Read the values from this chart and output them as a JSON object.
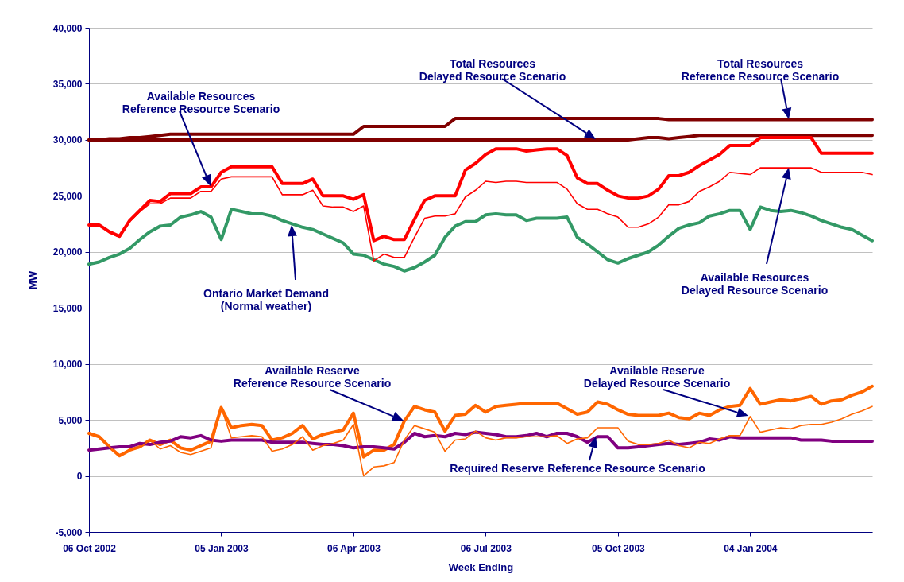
{
  "chart_data": {
    "type": "line",
    "xlabel": "Week Ending",
    "ylabel": "MW",
    "x": [
      "2002-10-06",
      "2002-10-13",
      "2002-10-20",
      "2002-10-27",
      "2002-11-03",
      "2002-11-10",
      "2002-11-17",
      "2002-11-24",
      "2002-12-01",
      "2002-12-08",
      "2002-12-15",
      "2002-12-22",
      "2002-12-29",
      "2003-01-05",
      "2003-01-12",
      "2003-01-19",
      "2003-01-26",
      "2003-02-02",
      "2003-02-09",
      "2003-02-16",
      "2003-02-23",
      "2003-03-02",
      "2003-03-09",
      "2003-03-16",
      "2003-03-23",
      "2003-03-30",
      "2003-04-06",
      "2003-04-13",
      "2003-04-20",
      "2003-04-27",
      "2003-05-04",
      "2003-05-11",
      "2003-05-18",
      "2003-05-25",
      "2003-06-01",
      "2003-06-08",
      "2003-06-15",
      "2003-06-22",
      "2003-06-29",
      "2003-07-06",
      "2003-07-13",
      "2003-07-20",
      "2003-07-27",
      "2003-08-03",
      "2003-08-10",
      "2003-08-17",
      "2003-08-24",
      "2003-08-31",
      "2003-09-07",
      "2003-09-14",
      "2003-09-21",
      "2003-09-28",
      "2003-10-05",
      "2003-10-12",
      "2003-10-19",
      "2003-10-26",
      "2003-11-02",
      "2003-11-09",
      "2003-11-16",
      "2003-11-23",
      "2003-11-30",
      "2003-12-07",
      "2003-12-14",
      "2003-12-21",
      "2003-12-28",
      "2004-01-04",
      "2004-01-11",
      "2004-01-18",
      "2004-01-25",
      "2004-02-01",
      "2004-02-08",
      "2004-02-15",
      "2004-02-22",
      "2004-02-29",
      "2004-03-07",
      "2004-03-14",
      "2004-03-21",
      "2004-03-28"
    ],
    "series": [
      {
        "color": "#800000",
        "values": [
          30000,
          30000,
          30100,
          30100,
          30200,
          30200,
          30300,
          30400,
          30500,
          30500,
          30500,
          30500,
          30500,
          30500,
          30500,
          30500,
          30500,
          30500,
          30500,
          30500,
          30500,
          30500,
          30500,
          30500,
          30500,
          30500,
          30500,
          31200,
          31200,
          31200,
          31200,
          31200,
          31200,
          31200,
          31200,
          31200,
          31900,
          31900,
          31900,
          31900,
          31900,
          31900,
          31900,
          31900,
          31900,
          31900,
          31900,
          31900,
          31900,
          31900,
          31900,
          31900,
          31900,
          31900,
          31900,
          31900,
          31900,
          31800,
          31800,
          31800,
          31800,
          31800,
          31800,
          31800,
          31800,
          31800,
          31800,
          31800,
          31800,
          31800,
          31800,
          31800,
          31800,
          31800,
          31800,
          31800,
          31800,
          31800
        ]
      },
      {
        "color": "#800000",
        "values": [
          30000,
          30000,
          30000,
          30000,
          30000,
          30000,
          30000,
          30000,
          30000,
          30000,
          30000,
          30000,
          30000,
          30000,
          30000,
          30000,
          30000,
          30000,
          30000,
          30000,
          30000,
          30000,
          30000,
          30000,
          30000,
          30000,
          30000,
          30000,
          30000,
          30000,
          30000,
          30000,
          30000,
          30000,
          30000,
          30000,
          30000,
          30000,
          30000,
          30000,
          30000,
          30000,
          30000,
          30000,
          30000,
          30000,
          30000,
          30000,
          30000,
          30000,
          30000,
          30000,
          30000,
          30000,
          30100,
          30200,
          30200,
          30100,
          30200,
          30300,
          30400,
          30400,
          30400,
          30400,
          30400,
          30400,
          30400,
          30400,
          30400,
          30400,
          30400,
          30400,
          30400,
          30400,
          30400,
          30400,
          30400,
          30400
        ]
      },
      {
        "color": "#ff0000",
        "values": [
          22400,
          22400,
          21800,
          21400,
          22800,
          23700,
          24600,
          24500,
          25200,
          25200,
          25200,
          25800,
          25800,
          27100,
          27600,
          27600,
          27600,
          27600,
          27600,
          26100,
          26100,
          26100,
          26500,
          25000,
          25000,
          25000,
          24700,
          25100,
          21000,
          21400,
          21100,
          21100,
          22900,
          24600,
          25000,
          25000,
          25000,
          27300,
          27900,
          28700,
          29200,
          29200,
          29200,
          29000,
          29100,
          29200,
          29200,
          28600,
          26600,
          26100,
          26100,
          25500,
          25000,
          24800,
          24800,
          25000,
          25600,
          26800,
          26800,
          27100,
          27700,
          28200,
          28700,
          29500,
          29500,
          29500,
          30200,
          30200,
          30200,
          30200,
          30200,
          30200,
          28800,
          28800,
          28800,
          28800,
          28800,
          28800
        ]
      },
      {
        "color": "#ff0000",
        "values": [
          22400,
          22400,
          21700,
          21300,
          22700,
          23600,
          24300,
          24300,
          24800,
          24800,
          24800,
          25400,
          25400,
          26500,
          26700,
          26700,
          26700,
          26700,
          26700,
          25100,
          25100,
          25100,
          25500,
          24100,
          24000,
          24000,
          23600,
          24100,
          19200,
          19800,
          19500,
          19500,
          21300,
          23000,
          23200,
          23200,
          23400,
          24900,
          25500,
          26300,
          26200,
          26300,
          26300,
          26200,
          26200,
          26200,
          26200,
          25600,
          24300,
          23800,
          23800,
          23400,
          23100,
          22200,
          22200,
          22500,
          23100,
          24200,
          24200,
          24500,
          25400,
          25800,
          26300,
          27100,
          27000,
          26900,
          27500,
          27500,
          27500,
          27500,
          27500,
          27500,
          27100,
          27100,
          27100,
          27100,
          27100,
          26900
        ]
      },
      {
        "color": "#339966",
        "values": [
          18900,
          19100,
          19500,
          19800,
          20300,
          21100,
          21800,
          22300,
          22400,
          23100,
          23300,
          23600,
          23100,
          21100,
          23800,
          23600,
          23400,
          23400,
          23200,
          22800,
          22500,
          22200,
          22000,
          21600,
          21200,
          20800,
          19800,
          19700,
          19300,
          18900,
          18700,
          18300,
          18600,
          19100,
          19700,
          21300,
          22300,
          22700,
          22700,
          23300,
          23400,
          23300,
          23300,
          22800,
          23000,
          23000,
          23000,
          23100,
          21300,
          20700,
          20000,
          19300,
          19000,
          19400,
          19700,
          20000,
          20600,
          21400,
          22100,
          22400,
          22600,
          23200,
          23400,
          23700,
          23700,
          22000,
          24000,
          23700,
          23600,
          23700,
          23500,
          23200,
          22800,
          22500,
          22200,
          22000,
          21500,
          21000
        ]
      },
      {
        "color": "#ff6600",
        "values": [
          3800,
          3500,
          2600,
          1800,
          2300,
          2600,
          3200,
          2800,
          3200,
          2500,
          2300,
          2700,
          3100,
          6100,
          4300,
          4500,
          4600,
          4500,
          3200,
          3400,
          3800,
          4500,
          3300,
          3700,
          3900,
          4100,
          5600,
          1700,
          2300,
          2300,
          2800,
          4900,
          6200,
          5900,
          5700,
          4000,
          5400,
          5500,
          6300,
          5700,
          6200,
          6300,
          6400,
          6500,
          6500,
          6500,
          6500,
          6000,
          5500,
          5700,
          6600,
          6400,
          5900,
          5500,
          5400,
          5400,
          5400,
          5600,
          5200,
          5100,
          5600,
          5400,
          5900,
          6200,
          6300,
          7800,
          6400,
          6600,
          6800,
          6700,
          6900,
          7100,
          6400,
          6700,
          6800,
          7200,
          7500,
          8000
        ]
      },
      {
        "color": "#ff6600",
        "values": [
          3800,
          3500,
          2600,
          1900,
          2300,
          2500,
          3200,
          2400,
          2700,
          2100,
          1900,
          2200,
          2500,
          6100,
          3400,
          3500,
          3600,
          3500,
          2200,
          2400,
          2800,
          3500,
          2300,
          2700,
          2900,
          3200,
          4600,
          0,
          800,
          900,
          1200,
          3200,
          4500,
          4200,
          3900,
          2200,
          3200,
          3300,
          4000,
          3400,
          3200,
          3400,
          3400,
          3500,
          3500,
          3500,
          3600,
          2900,
          3300,
          3400,
          4300,
          4300,
          4300,
          3100,
          2800,
          2800,
          2900,
          3200,
          2700,
          2500,
          3000,
          2900,
          3300,
          3600,
          3600,
          5300,
          3900,
          4100,
          4300,
          4200,
          4500,
          4600,
          4600,
          4800,
          5100,
          5500,
          5800,
          6200
        ]
      },
      {
        "color": "#800080",
        "values": [
          2300,
          2400,
          2500,
          2600,
          2600,
          2900,
          2800,
          3000,
          3100,
          3500,
          3400,
          3600,
          3200,
          3100,
          3200,
          3200,
          3200,
          3200,
          3000,
          3000,
          3000,
          3000,
          2900,
          2800,
          2800,
          2700,
          2500,
          2600,
          2600,
          2500,
          2400,
          3000,
          3800,
          3500,
          3600,
          3500,
          3800,
          3700,
          3900,
          3800,
          3700,
          3500,
          3500,
          3600,
          3800,
          3500,
          3800,
          3800,
          3500,
          3000,
          3500,
          3500,
          2500,
          2500,
          2600,
          2700,
          2800,
          2900,
          2800,
          2900,
          3000,
          3300,
          3200,
          3500,
          3400,
          3400,
          3400,
          3400,
          3400,
          3400,
          3200,
          3200,
          3200,
          3100,
          3100,
          3100,
          3100,
          3100
        ]
      }
    ],
    "xlim": [
      "2002-10-06",
      "2004-03-28"
    ],
    "xticks": [
      {
        "value": "2002-10-06",
        "label": "06 Oct 2002"
      },
      {
        "value": "2003-01-05",
        "label": "05 Jan 2003"
      },
      {
        "value": "2003-04-06",
        "label": "06 Apr 2003"
      },
      {
        "value": "2003-07-06",
        "label": "06 Jul 2003"
      },
      {
        "value": "2003-10-05",
        "label": "05 Oct 2003"
      },
      {
        "value": "2004-01-04",
        "label": "04 Jan 2004"
      }
    ],
    "ylim": [
      -5000,
      40000
    ],
    "yticks": [
      {
        "value": -5000,
        "label": "-5,000"
      },
      {
        "value": 0,
        "label": "0"
      },
      {
        "value": 5000,
        "label": "5,000"
      },
      {
        "value": 10000,
        "label": "10,000"
      },
      {
        "value": 15000,
        "label": "15,000"
      },
      {
        "value": 20000,
        "label": "20,000"
      },
      {
        "value": 25000,
        "label": "25,000"
      },
      {
        "value": 30000,
        "label": "30,000"
      },
      {
        "value": 35000,
        "label": "35,000"
      },
      {
        "value": 40000,
        "label": "40,000"
      }
    ],
    "grid": "y",
    "annotations": [
      "Available Resources\nReference Resource Scenario",
      "Ontario Market Demand\n(Normal weather)",
      "Total Resources\nDelayed Resource Scenario",
      "Total Resources\nReference Resource Scenario",
      "Available Resources\nDelayed Resource Scenario",
      "Available Reserve\nReference Resource Scenario",
      "Available Reserve\nDelayed Resource Scenario",
      "Required Reserve Reference Resource Scenario"
    ]
  }
}
